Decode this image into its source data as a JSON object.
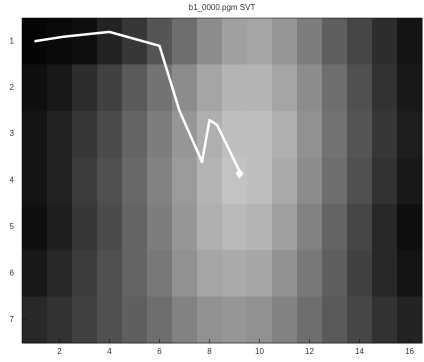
{
  "chart_data": {
    "type": "heatmap",
    "title": "b1_0000.pgm SVT",
    "z": [
      [
        5,
        10,
        15,
        35,
        55,
        85,
        110,
        140,
        160,
        165,
        150,
        125,
        95,
        70,
        45,
        20
      ],
      [
        15,
        25,
        45,
        65,
        90,
        115,
        140,
        165,
        180,
        180,
        165,
        140,
        110,
        80,
        50,
        25
      ],
      [
        20,
        35,
        55,
        75,
        100,
        125,
        150,
        175,
        190,
        190,
        175,
        145,
        115,
        85,
        55,
        30
      ],
      [
        20,
        35,
        60,
        80,
        105,
        130,
        155,
        180,
        195,
        190,
        170,
        140,
        110,
        80,
        50,
        25
      ],
      [
        15,
        30,
        55,
        75,
        100,
        125,
        150,
        175,
        185,
        180,
        160,
        130,
        100,
        70,
        40,
        15
      ],
      [
        25,
        40,
        60,
        80,
        100,
        120,
        145,
        165,
        170,
        165,
        145,
        120,
        95,
        65,
        40,
        20
      ],
      [
        40,
        50,
        65,
        80,
        95,
        110,
        130,
        145,
        150,
        145,
        130,
        110,
        90,
        70,
        50,
        35
      ]
    ],
    "xlim": [
      0.5,
      16.5
    ],
    "ylim": [
      0.5,
      7.5
    ],
    "y_reversed": true,
    "xticks": [
      2,
      4,
      6,
      8,
      10,
      12,
      14,
      16
    ],
    "yticks": [
      1,
      2,
      3,
      4,
      5,
      6,
      7
    ],
    "line": {
      "color": "#ffffff",
      "x": [
        1,
        2.2,
        4,
        6,
        6.8,
        7.7,
        8,
        8.3,
        9.2
      ],
      "y": [
        1.0,
        0.9,
        0.8,
        1.1,
        2.5,
        3.6,
        2.7,
        2.8,
        3.8
      ]
    },
    "marker": {
      "x": 9.2,
      "y": 3.85
    }
  }
}
